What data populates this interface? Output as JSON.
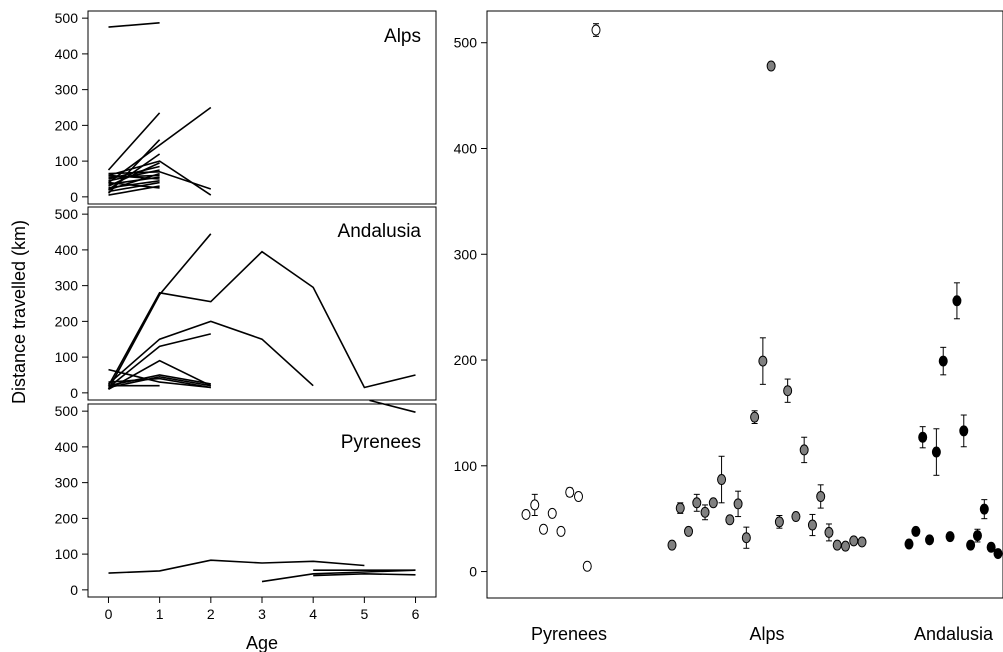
{
  "figure": {
    "left_ylabel": "Distance travelled (km)",
    "left_xlabel": "Age"
  },
  "chart_data": [
    {
      "type": "line",
      "title": "Alps",
      "xlabel": "Age",
      "ylabel": "Distance travelled (km)",
      "xlim": [
        -0.4,
        6.4
      ],
      "ylim": [
        -20,
        520
      ],
      "xticks": [
        0,
        1,
        2,
        3,
        4,
        5,
        6
      ],
      "yticks": [
        0,
        100,
        200,
        300,
        400,
        500
      ],
      "show_xticks": false,
      "segments": [
        [
          [
            0,
            475
          ],
          [
            1,
            487
          ]
        ],
        [
          [
            0,
            75
          ],
          [
            1,
            235
          ]
        ],
        [
          [
            0,
            10
          ],
          [
            1,
            160
          ]
        ],
        [
          [
            0,
            40
          ],
          [
            2,
            250
          ]
        ],
        [
          [
            0,
            20
          ],
          [
            1,
            120
          ]
        ],
        [
          [
            0,
            65
          ],
          [
            1,
            70
          ],
          [
            2,
            22
          ]
        ],
        [
          [
            0,
            60
          ],
          [
            1,
            100
          ],
          [
            2,
            5
          ]
        ],
        [
          [
            0,
            30
          ],
          [
            1,
            95
          ]
        ],
        [
          [
            0,
            50
          ],
          [
            1,
            85
          ]
        ],
        [
          [
            0,
            45
          ],
          [
            1,
            75
          ]
        ],
        [
          [
            0,
            55
          ],
          [
            1,
            60
          ]
        ],
        [
          [
            0,
            35
          ],
          [
            1,
            55
          ]
        ],
        [
          [
            0,
            25
          ],
          [
            1,
            45
          ]
        ],
        [
          [
            0,
            15
          ],
          [
            1,
            40
          ]
        ],
        [
          [
            0,
            5
          ],
          [
            1,
            30
          ]
        ],
        [
          [
            0,
            40
          ],
          [
            1,
            25
          ]
        ],
        [
          [
            0,
            20
          ],
          [
            1,
            65
          ]
        ],
        [
          [
            0,
            60
          ],
          [
            1,
            50
          ]
        ]
      ]
    },
    {
      "type": "line",
      "title": "Andalusia",
      "xlim": [
        -0.4,
        6.4
      ],
      "ylim": [
        -20,
        520
      ],
      "xticks": [
        0,
        1,
        2,
        3,
        4,
        5,
        6
      ],
      "yticks": [
        0,
        100,
        200,
        300,
        400,
        500
      ],
      "show_xticks": false,
      "segments": [
        [
          [
            0,
            20
          ],
          [
            1,
            280
          ],
          [
            2,
            255
          ],
          [
            3,
            395
          ],
          [
            4,
            295
          ],
          [
            5,
            15
          ],
          [
            6,
            50
          ]
        ],
        [
          [
            0,
            10
          ],
          [
            1,
            275
          ],
          [
            2,
            445
          ]
        ],
        [
          [
            0,
            25
          ],
          [
            1,
            150
          ],
          [
            2,
            200
          ],
          [
            3,
            150
          ],
          [
            4,
            20
          ]
        ],
        [
          [
            0,
            15
          ],
          [
            1,
            130
          ],
          [
            2,
            165
          ]
        ],
        [
          [
            0,
            10
          ],
          [
            1,
            90
          ],
          [
            2,
            20
          ]
        ],
        [
          [
            0,
            65
          ],
          [
            1,
            30
          ],
          [
            2,
            15
          ]
        ],
        [
          [
            0,
            20
          ],
          [
            1,
            50
          ],
          [
            2,
            25
          ]
        ],
        [
          [
            0,
            15
          ],
          [
            1,
            45
          ],
          [
            2,
            20
          ]
        ],
        [
          [
            0,
            30
          ],
          [
            1,
            40
          ],
          [
            2,
            15
          ]
        ],
        [
          [
            0,
            20
          ],
          [
            1,
            20
          ]
        ]
      ]
    },
    {
      "type": "line",
      "title": "Pyrenees",
      "xlim": [
        -0.4,
        6.4
      ],
      "ylim": [
        -20,
        520
      ],
      "xticks": [
        0,
        1,
        2,
        3,
        4,
        5,
        6
      ],
      "yticks": [
        0,
        100,
        200,
        300,
        400,
        500
      ],
      "show_xticks": true,
      "segments": [
        [
          [
            0,
            47
          ],
          [
            1,
            53
          ],
          [
            2,
            83
          ],
          [
            3,
            75
          ],
          [
            4,
            80
          ],
          [
            5,
            68
          ]
        ],
        [
          [
            3,
            23
          ],
          [
            4,
            45
          ],
          [
            5,
            50
          ],
          [
            6,
            55
          ]
        ],
        [
          [
            4,
            55
          ],
          [
            5,
            55
          ],
          [
            6,
            55
          ]
        ],
        [
          [
            4,
            40
          ],
          [
            5,
            45
          ],
          [
            6,
            42
          ]
        ],
        [
          [
            5.1,
            530
          ],
          [
            6,
            497
          ]
        ]
      ]
    },
    {
      "type": "scatter",
      "categories": [
        "Pyrenees",
        "Alps",
        "Andalusia"
      ],
      "ylim": [
        -25,
        530
      ],
      "yticks": [
        0,
        100,
        200,
        300,
        400,
        500
      ],
      "series": [
        {
          "group": "Pyrenees",
          "color": "#ffffff",
          "points": [
            [
              0,
              54,
              0
            ],
            [
              1,
              63,
              10
            ],
            [
              2,
              40,
              0
            ],
            [
              3,
              55,
              0
            ],
            [
              4,
              38,
              0
            ],
            [
              5,
              75,
              4
            ],
            [
              6,
              71,
              0
            ],
            [
              7,
              5,
              0
            ],
            [
              8,
              512,
              6
            ]
          ]
        },
        {
          "group": "Alps",
          "color": "#808080",
          "points": [
            [
              0,
              25,
              0
            ],
            [
              1,
              60,
              5
            ],
            [
              2,
              38,
              0
            ],
            [
              3,
              65,
              8
            ],
            [
              4,
              56,
              7
            ],
            [
              5,
              65,
              0
            ],
            [
              6,
              87,
              22
            ],
            [
              7,
              49,
              0
            ],
            [
              8,
              64,
              12
            ],
            [
              9,
              32,
              10
            ],
            [
              10,
              146,
              6
            ],
            [
              11,
              199,
              22
            ],
            [
              12,
              478,
              0
            ],
            [
              13,
              47,
              6
            ],
            [
              14,
              171,
              11
            ],
            [
              15,
              52,
              0
            ],
            [
              16,
              115,
              12
            ],
            [
              17,
              44,
              10
            ],
            [
              18,
              71,
              11
            ],
            [
              19,
              37,
              8
            ],
            [
              20,
              25,
              0
            ],
            [
              21,
              24,
              0
            ],
            [
              22,
              29,
              0
            ],
            [
              23,
              28,
              0
            ]
          ]
        },
        {
          "group": "Andalusia",
          "color": "#000000",
          "points": [
            [
              0,
              26,
              0
            ],
            [
              1,
              38,
              0
            ],
            [
              2,
              127,
              10
            ],
            [
              3,
              30,
              0
            ],
            [
              4,
              113,
              22
            ],
            [
              5,
              199,
              13
            ],
            [
              6,
              33,
              0
            ],
            [
              7,
              256,
              17
            ],
            [
              8,
              133,
              15
            ],
            [
              9,
              25,
              2
            ],
            [
              10,
              34,
              6
            ],
            [
              11,
              59,
              9
            ],
            [
              12,
              23,
              0
            ],
            [
              13,
              17,
              0
            ]
          ]
        }
      ]
    }
  ]
}
